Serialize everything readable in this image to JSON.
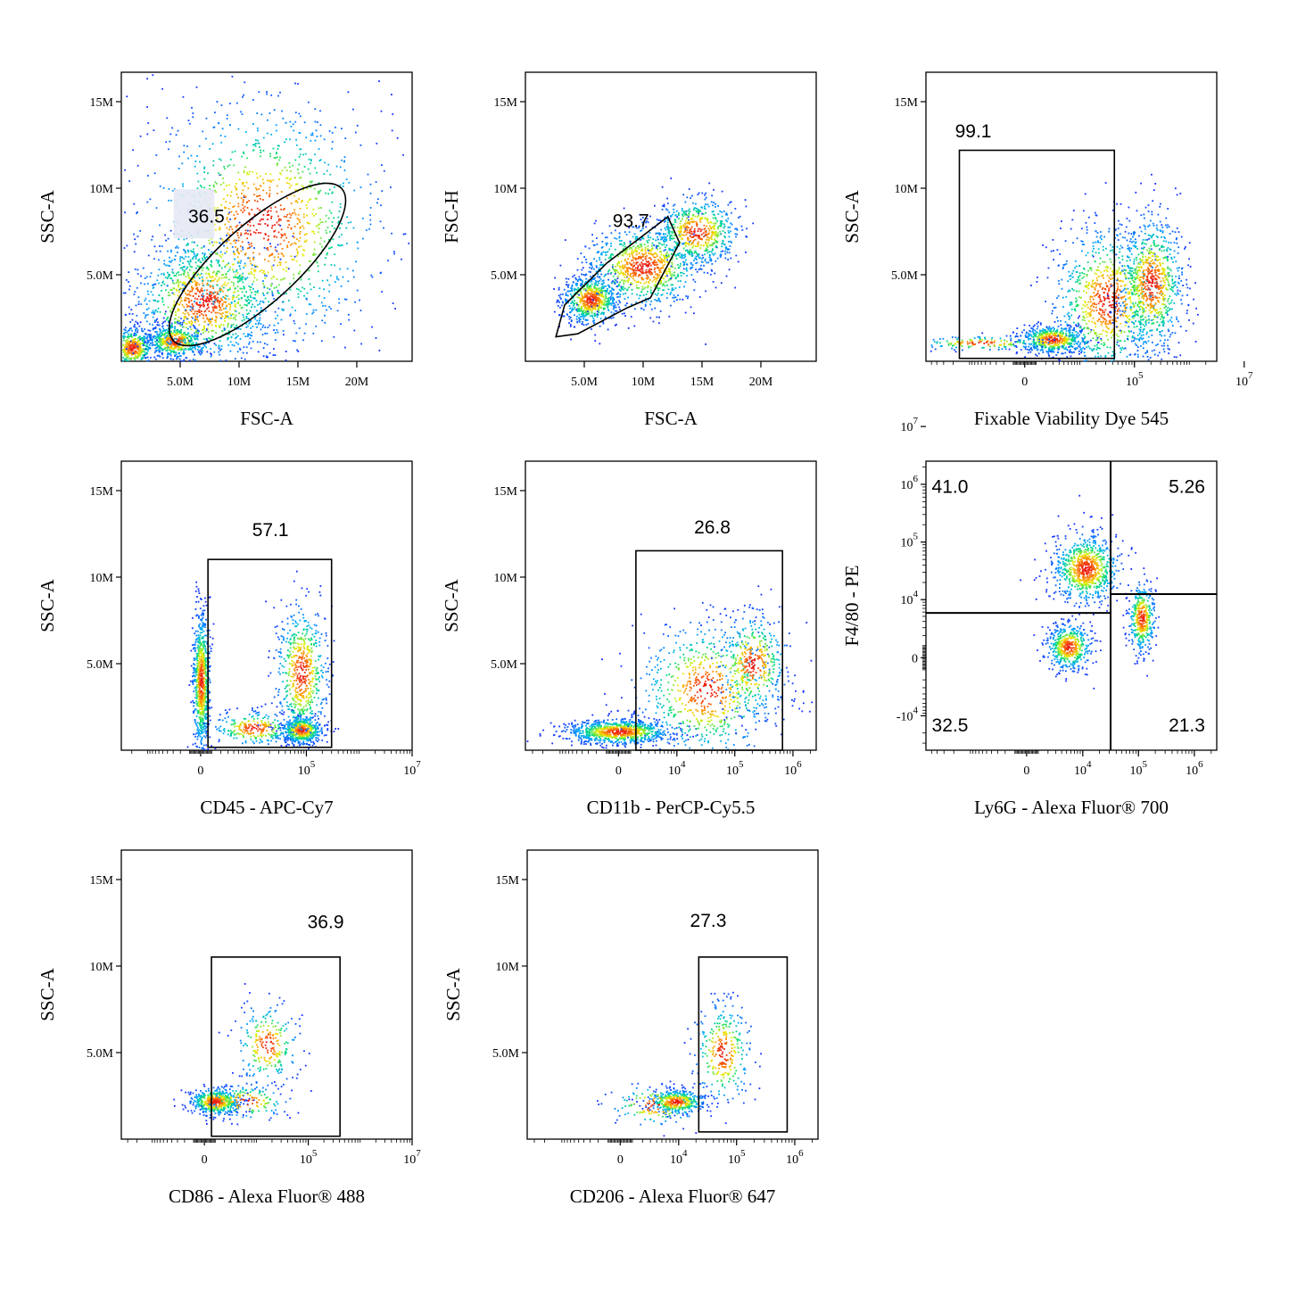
{
  "chart_data": [
    {
      "type": "scatter",
      "id": "p1",
      "xlabel": "FSC-A",
      "ylabel": "SSC-A",
      "x_scale": "linear",
      "xlim": [
        0,
        24700000
      ],
      "ylim": [
        0,
        16700000
      ],
      "x_ticks": [
        {
          "value": 5000000,
          "label": "5.0M"
        },
        {
          "value": 10000000,
          "label": "10M"
        },
        {
          "value": 15000000,
          "label": "15M"
        },
        {
          "value": 20000000,
          "label": "20M"
        }
      ],
      "y_ticks": [
        {
          "value": 5000000,
          "label": "5.0M"
        },
        {
          "value": 10000000,
          "label": "10M"
        },
        {
          "value": 15000000,
          "label": "15M"
        }
      ],
      "gate": {
        "shape": "ellipse",
        "percent": "36.5"
      },
      "clusters": [
        {
          "x": 900000,
          "y": 800000,
          "sx": 900000,
          "sy": 600000,
          "n": 500
        },
        {
          "x": 4500000,
          "y": 1200000,
          "sx": 1200000,
          "sy": 500000,
          "n": 500
        },
        {
          "x": 7000000,
          "y": 3500000,
          "sx": 3000000,
          "sy": 1800000,
          "n": 1100
        },
        {
          "x": 12000000,
          "y": 8000000,
          "sx": 5000000,
          "sy": 3500000,
          "n": 1300
        }
      ]
    },
    {
      "type": "scatter",
      "id": "p2",
      "xlabel": "FSC-A",
      "ylabel": "FSC-H",
      "x_scale": "linear",
      "xlim": [
        0,
        24700000
      ],
      "ylim": [
        0,
        16700000
      ],
      "x_ticks": [
        {
          "value": 5000000,
          "label": "5.0M"
        },
        {
          "value": 10000000,
          "label": "10M"
        },
        {
          "value": 15000000,
          "label": "15M"
        },
        {
          "value": 20000000,
          "label": "20M"
        }
      ],
      "y_ticks": [
        {
          "value": 5000000,
          "label": "5.0M"
        },
        {
          "value": 10000000,
          "label": "10M"
        },
        {
          "value": 15000000,
          "label": "15M"
        }
      ],
      "gate": {
        "shape": "polygon",
        "percent": "93.7"
      },
      "clusters": [
        {
          "x": 5500000,
          "y": 3600000,
          "sx": 1200000,
          "sy": 700000,
          "n": 700
        },
        {
          "x": 10000000,
          "y": 5500000,
          "sx": 2500000,
          "sy": 1200000,
          "n": 900
        },
        {
          "x": 14500000,
          "y": 7500000,
          "sx": 1800000,
          "sy": 1000000,
          "n": 600
        }
      ]
    },
    {
      "type": "scatter",
      "id": "p3",
      "xlabel": "Fixable Viability Dye 545",
      "ylabel": "SSC-A",
      "x_scale": "biexponential",
      "xlim": [
        -1.8,
        3.5
      ],
      "ylim": [
        0,
        16700000
      ],
      "x_ticks": [
        {
          "value": 0,
          "label": "0"
        },
        {
          "value": 100000,
          "label": "10",
          "exp": "5"
        },
        {
          "value": 10000000,
          "label": "10",
          "exp": "7"
        }
      ],
      "y_ticks": [
        {
          "value": 5000000,
          "label": "5.0M"
        },
        {
          "value": 10000000,
          "label": "10M"
        },
        {
          "value": 15000000,
          "label": "15M"
        }
      ],
      "gate": {
        "shape": "rectangle",
        "percent": "99.1"
      },
      "clusters": [
        {
          "x": 0.5,
          "y": 1300000,
          "sx": 0.3,
          "sy": 400000,
          "n": 600
        },
        {
          "x": 1.5,
          "y": 3500000,
          "sx": 0.5,
          "sy": 2200000,
          "n": 900
        },
        {
          "x": 2.3,
          "y": 4500000,
          "sx": 0.3,
          "sy": 2000000,
          "n": 800
        },
        {
          "x": -0.8,
          "y": 1100000,
          "sx": 0.6,
          "sy": 200000,
          "n": 150
        }
      ]
    },
    {
      "type": "scatter",
      "id": "p4",
      "xlabel": "CD45 - APC-Cy7",
      "ylabel": "SSC-A",
      "x_scale": "biexponential",
      "xlim": [
        -1.5,
        4.0
      ],
      "ylim": [
        0,
        16700000
      ],
      "x_ticks": [
        {
          "value": 0,
          "label": "0"
        },
        {
          "value": 100000,
          "label": "10",
          "exp": "5"
        },
        {
          "value": 10000000,
          "label": "10",
          "exp": "7"
        }
      ],
      "y_ticks": [
        {
          "value": 5000000,
          "label": "5.0M"
        },
        {
          "value": 10000000,
          "label": "10M"
        },
        {
          "value": 15000000,
          "label": "15M"
        }
      ],
      "gate": {
        "shape": "rectangle",
        "percent": "57.1"
      },
      "clusters": [
        {
          "x": 0.0,
          "y": 4000000,
          "sx": 0.08,
          "sy": 2000000,
          "n": 800
        },
        {
          "x": 1.9,
          "y": 1200000,
          "sx": 0.2,
          "sy": 400000,
          "n": 500
        },
        {
          "x": 1.9,
          "y": 4500000,
          "sx": 0.25,
          "sy": 2000000,
          "n": 600
        },
        {
          "x": 1.0,
          "y": 1300000,
          "sx": 0.4,
          "sy": 500000,
          "n": 250
        }
      ]
    },
    {
      "type": "scatter",
      "id": "p5",
      "xlabel": "CD11b - PerCP-Cy5.5",
      "ylabel": "SSC-A",
      "x_scale": "biexponential",
      "xlim": [
        -1.6,
        3.4
      ],
      "ylim": [
        0,
        16700000
      ],
      "x_ticks": [
        {
          "value": 0,
          "label": "0"
        },
        {
          "value": 10000,
          "label": "10",
          "exp": "4"
        },
        {
          "value": 100000,
          "label": "10",
          "exp": "5"
        },
        {
          "value": 1000000,
          "label": "10",
          "exp": "6"
        }
      ],
      "y_ticks": [
        {
          "value": 5000000,
          "label": "5.0M"
        },
        {
          "value": 10000000,
          "label": "10M"
        },
        {
          "value": 15000000,
          "label": "15M"
        }
      ],
      "gate": {
        "shape": "rectangle",
        "percent": "26.8"
      },
      "clusters": [
        {
          "x": 0.0,
          "y": 1100000,
          "sx": 0.45,
          "sy": 350000,
          "n": 900
        },
        {
          "x": 1.5,
          "y": 3500000,
          "sx": 0.6,
          "sy": 2000000,
          "n": 700
        },
        {
          "x": 2.3,
          "y": 5000000,
          "sx": 0.3,
          "sy": 1500000,
          "n": 400
        }
      ]
    },
    {
      "type": "scatter",
      "id": "p6",
      "xlabel": "Ly6G - Alexa Fluor® 700",
      "ylabel": "F4/80 - PE",
      "x_scale": "biexponential",
      "y_scale": "biexponential",
      "xlim": [
        -1.8,
        3.4
      ],
      "ylim": [
        -1.6,
        3.4
      ],
      "x_ticks": [
        {
          "value": 0,
          "label": "0"
        },
        {
          "value": 10000,
          "label": "10",
          "exp": "4"
        },
        {
          "value": 100000,
          "label": "10",
          "exp": "5"
        },
        {
          "value": 1000000,
          "label": "10",
          "exp": "6"
        }
      ],
      "y_ticks": [
        {
          "value": -10000,
          "label": "-10",
          "exp": "4"
        },
        {
          "value": 0,
          "label": "0"
        },
        {
          "value": 10000,
          "label": "10",
          "exp": "4"
        },
        {
          "value": 100000,
          "label": "10",
          "exp": "5"
        },
        {
          "value": 1000000,
          "label": "10",
          "exp": "6"
        },
        {
          "value": 10000000,
          "label": "10",
          "exp": "7"
        }
      ],
      "quadrants": [
        "41.0",
        "5.26",
        "32.5",
        "21.3"
      ],
      "clusters": [
        {
          "x": 1.05,
          "y": 1.55,
          "sx": 0.3,
          "sy": 0.3,
          "n": 800
        },
        {
          "x": 0.75,
          "y": 0.2,
          "sx": 0.2,
          "sy": 0.2,
          "n": 500
        },
        {
          "x": 2.05,
          "y": 0.7,
          "sx": 0.12,
          "sy": 0.3,
          "n": 400
        }
      ]
    },
    {
      "type": "scatter",
      "id": "p7",
      "xlabel": "CD86 - Alexa Fluor® 488",
      "ylabel": "SSC-A",
      "x_scale": "biexponential",
      "xlim": [
        -1.6,
        4.0
      ],
      "ylim": [
        0,
        16700000
      ],
      "x_ticks": [
        {
          "value": 0,
          "label": "0"
        },
        {
          "value": 100000,
          "label": "10",
          "exp": "5"
        },
        {
          "value": 10000000,
          "label": "10",
          "exp": "7"
        }
      ],
      "y_ticks": [
        {
          "value": 5000000,
          "label": "5.0M"
        },
        {
          "value": 10000000,
          "label": "10M"
        },
        {
          "value": 15000000,
          "label": "15M"
        }
      ],
      "gate": {
        "shape": "rectangle",
        "percent": "36.9"
      },
      "clusters": [
        {
          "x": 0.2,
          "y": 2200000,
          "sx": 0.25,
          "sy": 400000,
          "n": 500
        },
        {
          "x": 1.2,
          "y": 5500000,
          "sx": 0.3,
          "sy": 1200000,
          "n": 250
        },
        {
          "x": 0.8,
          "y": 2200000,
          "sx": 0.4,
          "sy": 500000,
          "n": 150
        }
      ]
    },
    {
      "type": "scatter",
      "id": "p8",
      "xlabel": "CD206 - Alexa Fluor® 647",
      "ylabel": "SSC-A",
      "x_scale": "biexponential",
      "xlim": [
        -1.6,
        3.4
      ],
      "ylim": [
        0,
        16700000
      ],
      "x_ticks": [
        {
          "value": 0,
          "label": "0"
        },
        {
          "value": 10000,
          "label": "10",
          "exp": "4"
        },
        {
          "value": 100000,
          "label": "10",
          "exp": "5"
        },
        {
          "value": 1000000,
          "label": "10",
          "exp": "6"
        }
      ],
      "y_ticks": [
        {
          "value": 5000000,
          "label": "5.0M"
        },
        {
          "value": 10000000,
          "label": "10M"
        },
        {
          "value": 15000000,
          "label": "15M"
        }
      ],
      "gate": {
        "shape": "rectangle",
        "percent": "27.3"
      },
      "clusters": [
        {
          "x": 0.95,
          "y": 2200000,
          "sx": 0.25,
          "sy": 350000,
          "n": 450
        },
        {
          "x": 1.75,
          "y": 5000000,
          "sx": 0.25,
          "sy": 1500000,
          "n": 300
        },
        {
          "x": 0.6,
          "y": 2000000,
          "sx": 0.4,
          "sy": 600000,
          "n": 120
        }
      ]
    }
  ]
}
